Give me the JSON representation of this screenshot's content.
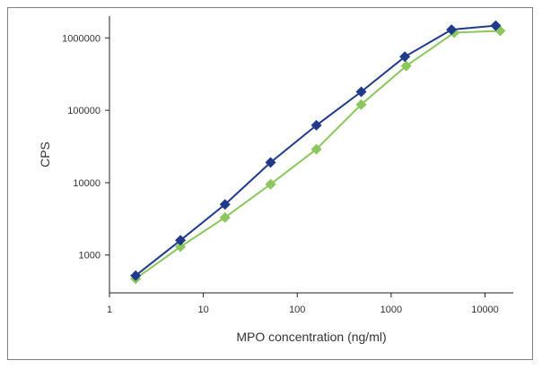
{
  "chart_data": {
    "type": "line",
    "title": "",
    "xlabel": "MPO concentration (ng/ml)",
    "ylabel": "CPS",
    "xscale": "log",
    "yscale": "log",
    "xlim": [
      1,
      20000
    ],
    "ylim": [
      300,
      2000000
    ],
    "x_ticks": [
      "1",
      "10",
      "100",
      "1000",
      "10000"
    ],
    "y_ticks": [
      "1000",
      "10000",
      "100000",
      "1000000"
    ],
    "grid": false,
    "legend": "none",
    "series": [
      {
        "color": "#1f3a8a",
        "marker": "diamond",
        "points": [
          [
            1.9,
            520
          ],
          [
            5.7,
            1600
          ],
          [
            17,
            5000
          ],
          [
            52,
            19000
          ],
          [
            160,
            62000
          ],
          [
            480,
            180000
          ],
          [
            1400,
            550000
          ],
          [
            4400,
            1300000
          ],
          [
            13000,
            1480000
          ]
        ]
      },
      {
        "color": "#8cc65f",
        "marker": "diamond",
        "points": [
          [
            1.9,
            470
          ],
          [
            5.7,
            1300
          ],
          [
            17,
            3300
          ],
          [
            52,
            9500
          ],
          [
            160,
            29000
          ],
          [
            480,
            120000
          ],
          [
            1450,
            410000
          ],
          [
            4700,
            1180000
          ],
          [
            14500,
            1250000
          ]
        ]
      }
    ]
  }
}
